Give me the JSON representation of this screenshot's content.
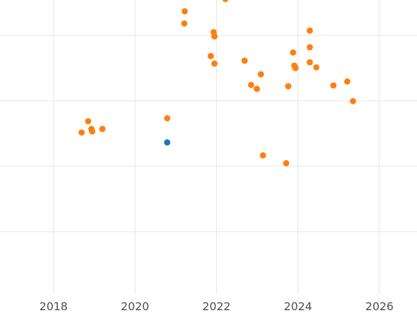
{
  "chart_data": {
    "type": "scatter",
    "x_type": "year",
    "xlim": [
      2017.2,
      2026.9
    ],
    "x_ticks": [
      2018,
      2020,
      2022,
      2024,
      2026
    ],
    "x_tick_labels": [
      "2018",
      "2020",
      "2022",
      "2024",
      "2026"
    ],
    "y_gridlines": 5,
    "show_y_tick_labels": false,
    "grid": true,
    "colors": {
      "orange": "#ff7f0e",
      "blue": "#1f77b4",
      "grid": "#e6e6e6",
      "text": "#4d4d4d"
    },
    "series": [
      {
        "color": "#ff7f0e",
        "points": [
          {
            "x": 2018.69,
            "y": 0.516
          },
          {
            "x": 2018.85,
            "y": 0.688
          },
          {
            "x": 2018.93,
            "y": 0.57
          },
          {
            "x": 2018.95,
            "y": 0.532
          },
          {
            "x": 2019.2,
            "y": 0.57
          },
          {
            "x": 2020.79,
            "y": 0.734
          },
          {
            "x": 2021.21,
            "y": 2.184
          },
          {
            "x": 2021.22,
            "y": 2.37
          },
          {
            "x": 2021.86,
            "y": 1.686
          },
          {
            "x": 2021.93,
            "y": 2.05
          },
          {
            "x": 2021.95,
            "y": 1.986
          },
          {
            "x": 2021.95,
            "y": 1.57
          },
          {
            "x": 2022.22,
            "y": 2.558
          },
          {
            "x": 2022.69,
            "y": 1.614
          },
          {
            "x": 2022.85,
            "y": 1.244
          },
          {
            "x": 2022.99,
            "y": 1.184
          },
          {
            "x": 2023.09,
            "y": 1.406
          },
          {
            "x": 2023.14,
            "y": 0.166
          },
          {
            "x": 2023.71,
            "y": 0.046
          },
          {
            "x": 2023.76,
            "y": 1.224
          },
          {
            "x": 2023.88,
            "y": 1.74
          },
          {
            "x": 2023.91,
            "y": 1.538
          },
          {
            "x": 2023.94,
            "y": 1.502
          },
          {
            "x": 2024.29,
            "y": 2.074
          },
          {
            "x": 2024.29,
            "y": 1.82
          },
          {
            "x": 2024.29,
            "y": 1.59
          },
          {
            "x": 2024.45,
            "y": 1.512
          },
          {
            "x": 2024.87,
            "y": 1.236
          },
          {
            "x": 2025.21,
            "y": 1.296
          },
          {
            "x": 2025.35,
            "y": 0.996
          }
        ]
      },
      {
        "color": "#1f77b4",
        "points": [
          {
            "x": 2020.79,
            "y": 0.364
          }
        ]
      }
    ]
  }
}
